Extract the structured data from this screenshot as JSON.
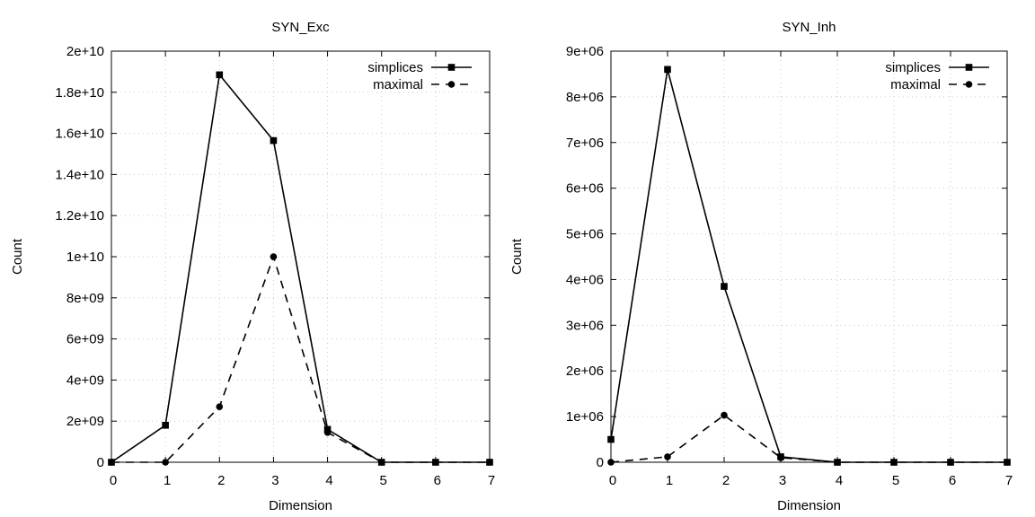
{
  "chart_data": [
    {
      "type": "line",
      "title": "SYN_Exc",
      "xlabel": "Dimension",
      "ylabel": "Count",
      "xlim": [
        0,
        7
      ],
      "ylim": [
        0,
        20000000000
      ],
      "x_ticks": [
        0,
        1,
        2,
        3,
        4,
        5,
        6,
        7
      ],
      "x_tick_labels": [
        "0",
        "1",
        "2",
        "3",
        "4",
        "5",
        "6",
        "7"
      ],
      "y_ticks": [
        0,
        2000000000,
        4000000000,
        6000000000,
        8000000000,
        10000000000,
        12000000000,
        14000000000,
        16000000000,
        18000000000,
        20000000000
      ],
      "y_tick_labels": [
        "0",
        "2e+09",
        "4e+09",
        "6e+09",
        "8e+09",
        "1e+10",
        "1.2e+10",
        "1.4e+10",
        "1.6e+10",
        "1.8e+10",
        "2e+10"
      ],
      "grid": true,
      "legend_position": "top-right",
      "x": [
        0,
        1,
        2,
        3,
        4,
        5,
        6,
        7
      ],
      "series": [
        {
          "name": "simplices",
          "values": [
            0,
            1800000000,
            18850000000,
            15650000000,
            1600000000,
            0,
            0,
            0
          ],
          "line_style": "solid",
          "marker": "square",
          "color": "#000000"
        },
        {
          "name": "maximal",
          "values": [
            0,
            0,
            2700000000,
            10000000000,
            1450000000,
            0,
            0,
            0
          ],
          "line_style": "dashed",
          "marker": "circle",
          "color": "#000000"
        }
      ]
    },
    {
      "type": "line",
      "title": "SYN_Inh",
      "xlabel": "Dimension",
      "ylabel": "Count",
      "xlim": [
        0,
        7
      ],
      "ylim": [
        0,
        9000000
      ],
      "x_ticks": [
        0,
        1,
        2,
        3,
        4,
        5,
        6,
        7
      ],
      "x_tick_labels": [
        "0",
        "1",
        "2",
        "3",
        "4",
        "5",
        "6",
        "7"
      ],
      "y_ticks": [
        0,
        1000000,
        2000000,
        3000000,
        4000000,
        5000000,
        6000000,
        7000000,
        8000000,
        9000000
      ],
      "y_tick_labels": [
        "0",
        "1e+06",
        "2e+06",
        "3e+06",
        "4e+06",
        "5e+06",
        "6e+06",
        "7e+06",
        "8e+06",
        "9e+06"
      ],
      "grid": true,
      "legend_position": "top-right",
      "x": [
        0,
        1,
        2,
        3,
        4,
        5,
        6,
        7
      ],
      "series": [
        {
          "name": "simplices",
          "values": [
            500000,
            8600000,
            3850000,
            120000,
            0,
            0,
            0,
            0
          ],
          "line_style": "solid",
          "marker": "square",
          "color": "#000000"
        },
        {
          "name": "maximal",
          "values": [
            0,
            120000,
            1030000,
            100000,
            0,
            0,
            0,
            0
          ],
          "line_style": "dashed",
          "marker": "circle",
          "color": "#000000"
        }
      ]
    }
  ]
}
